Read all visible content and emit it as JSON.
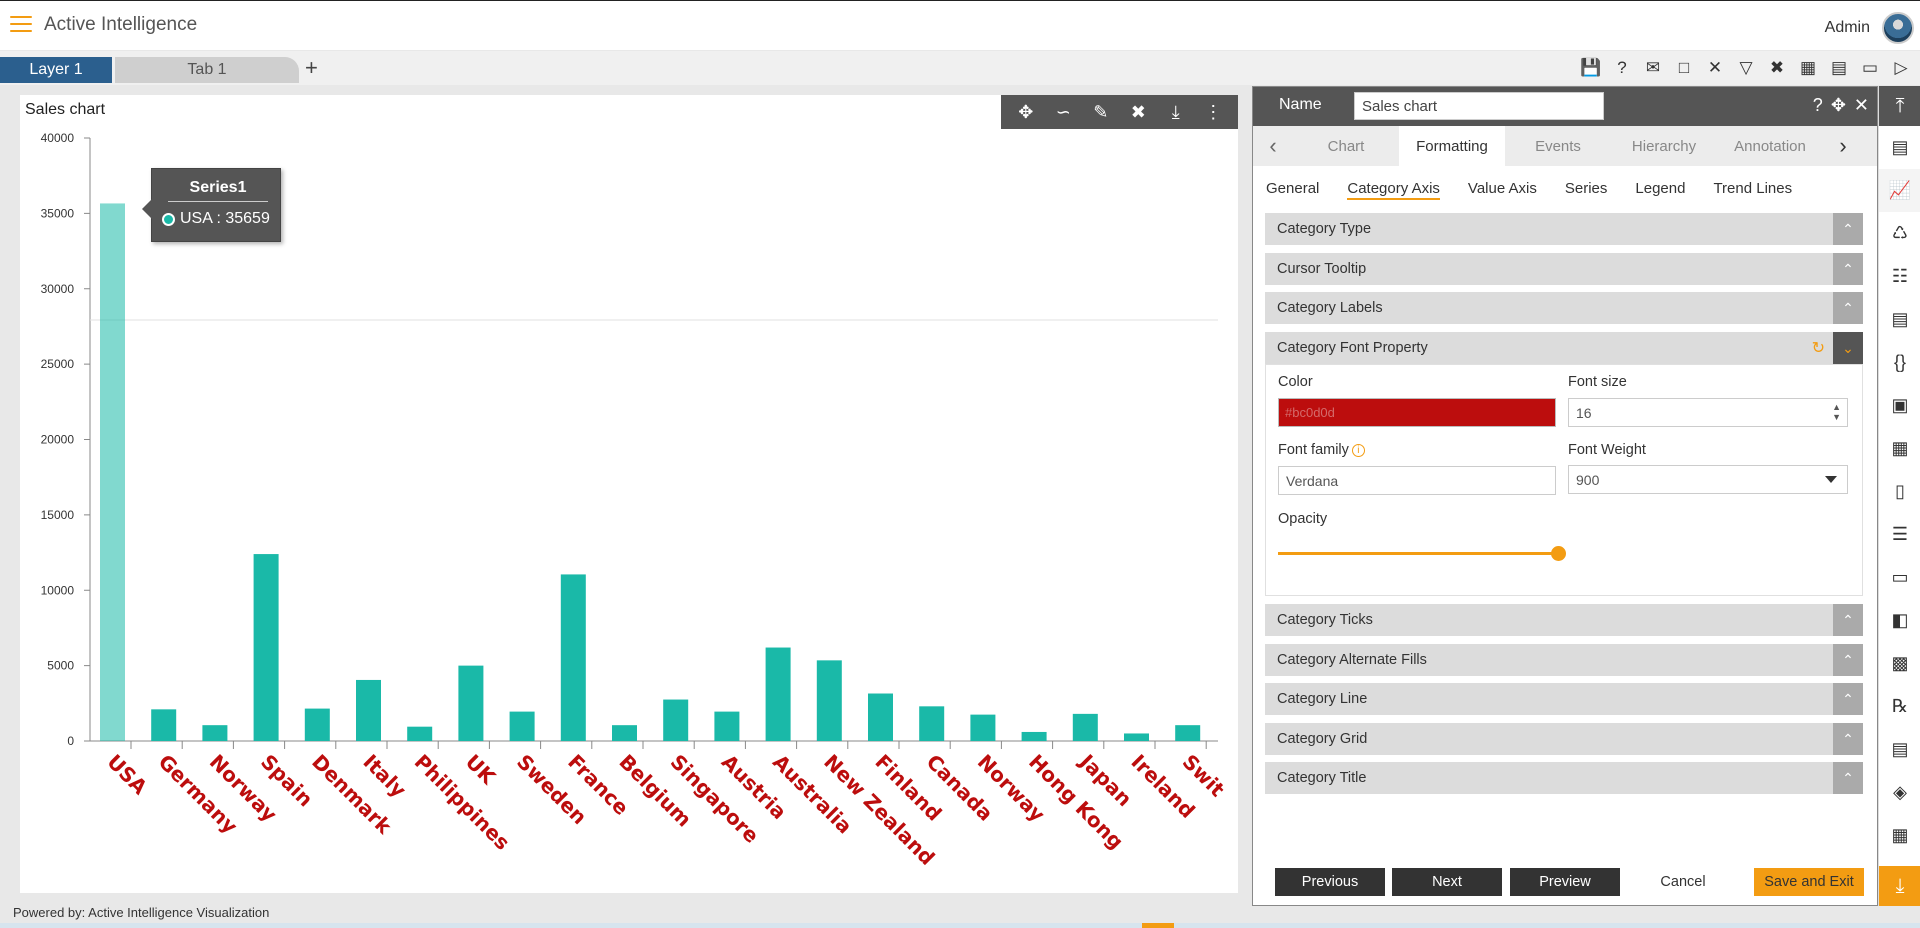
{
  "app": {
    "title": "Active Intelligence",
    "user": "Admin"
  },
  "tabs": {
    "layer": "Layer 1",
    "tab": "Tab 1",
    "add": "+"
  },
  "toolbar": {
    "icons": [
      "save-icon",
      "help-icon",
      "mail-icon",
      "comment-icon",
      "clear-filter-icon",
      "filter-icon",
      "tools-icon",
      "table-icon",
      "presentation-icon",
      "devices-icon",
      "play-icon"
    ]
  },
  "chart": {
    "card_title": "Sales chart",
    "tools": [
      "move-icon",
      "draw-icon",
      "edit-icon",
      "settings-icon",
      "download-icon",
      "more-icon"
    ],
    "tooltip": {
      "series": "Series1",
      "text": "USA : 35659"
    }
  },
  "chart_data": {
    "type": "bar",
    "title": "Sales chart",
    "categories": [
      "USA",
      "Germany",
      "Norway",
      "Spain",
      "Denmark",
      "Italy",
      "Philippines",
      "UK",
      "Sweden",
      "France",
      "Belgium",
      "Singapore",
      "Austria",
      "Australia",
      "New Zealand",
      "Finland",
      "Canada",
      "Norway",
      "Hong Kong",
      "Japan",
      "Ireland",
      "Swit"
    ],
    "series": [
      {
        "name": "Series1",
        "values": [
          35659,
          2100,
          1050,
          12400,
          2150,
          4050,
          950,
          5000,
          1950,
          11050,
          1050,
          2750,
          1950,
          6200,
          5350,
          3150,
          2300,
          1750,
          600,
          1800,
          500,
          1050
        ]
      }
    ],
    "ylim": [
      0,
      40000
    ],
    "yticks": [
      "0",
      "5000",
      "10000",
      "15000",
      "20000",
      "25000",
      "30000",
      "35000",
      "40000"
    ],
    "bar_color": "#1ab9a8",
    "label_color": "#bc0d0d"
  },
  "panel": {
    "name_label": "Name",
    "name_value": "Sales chart",
    "tabs": [
      "Chart",
      "Formatting",
      "Events",
      "Hierarchy",
      "Annotation"
    ],
    "active_tab": "Formatting",
    "subtabs": [
      "General",
      "Category Axis",
      "Value Axis",
      "Series",
      "Legend",
      "Trend Lines"
    ],
    "active_subtab": "Category Axis",
    "sections_top": [
      "Category Type",
      "Cursor Tooltip",
      "Category Labels"
    ],
    "font_section": "Category Font Property",
    "fields": {
      "color_label": "Color",
      "color_value": "#bc0d0d",
      "size_label": "Font size",
      "size_value": "16",
      "family_label": "Font family",
      "family_value": "Verdana",
      "weight_label": "Font Weight",
      "weight_value": "900",
      "opacity_label": "Opacity",
      "opacity_value": 1.0
    },
    "sections_bottom": [
      "Category Ticks",
      "Category Alternate Fills",
      "Category Line",
      "Category Grid",
      "Category Title"
    ],
    "buttons": {
      "previous": "Previous",
      "next": "Next",
      "preview": "Preview",
      "cancel": "Cancel",
      "save_exit": "Save and Exit"
    }
  },
  "footer": "Powered by: Active Intelligence Visualization"
}
